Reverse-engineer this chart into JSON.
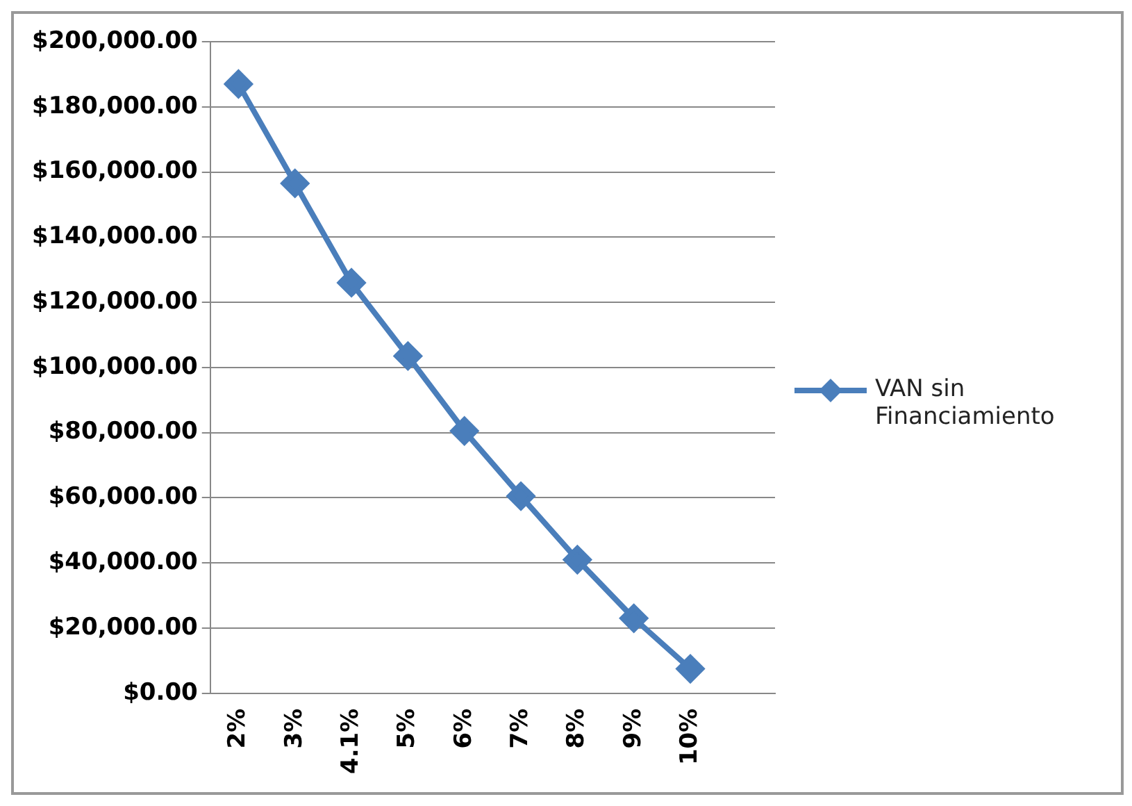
{
  "chart_data": {
    "type": "line",
    "categories": [
      "2%",
      "3%",
      "4.1%",
      "5%",
      "6%",
      "7%",
      "8%",
      "9%",
      "10%",
      null
    ],
    "series": [
      {
        "name": "VAN sin Financiamiento",
        "color": "#4a7ebb",
        "values": [
          187000,
          156500,
          126000,
          103500,
          80500,
          60500,
          41000,
          23000,
          7500,
          null
        ]
      }
    ],
    "ylim": [
      0,
      200000
    ],
    "yticks": [
      {
        "value": 0,
        "label": "$0.00"
      },
      {
        "value": 20000,
        "label": "$20,000.00"
      },
      {
        "value": 40000,
        "label": "$40,000.00"
      },
      {
        "value": 60000,
        "label": "$60,000.00"
      },
      {
        "value": 80000,
        "label": "$80,000.00"
      },
      {
        "value": 100000,
        "label": "$100,000.00"
      },
      {
        "value": 120000,
        "label": "$120,000.00"
      },
      {
        "value": 140000,
        "label": "$140,000.00"
      },
      {
        "value": 160000,
        "label": "$160,000.00"
      },
      {
        "value": 180000,
        "label": "$180,000.00"
      },
      {
        "value": 200000,
        "label": "$200,000.00"
      }
    ],
    "grid": "y",
    "legend": "right",
    "marker": "diamond",
    "line_style": "solid"
  }
}
